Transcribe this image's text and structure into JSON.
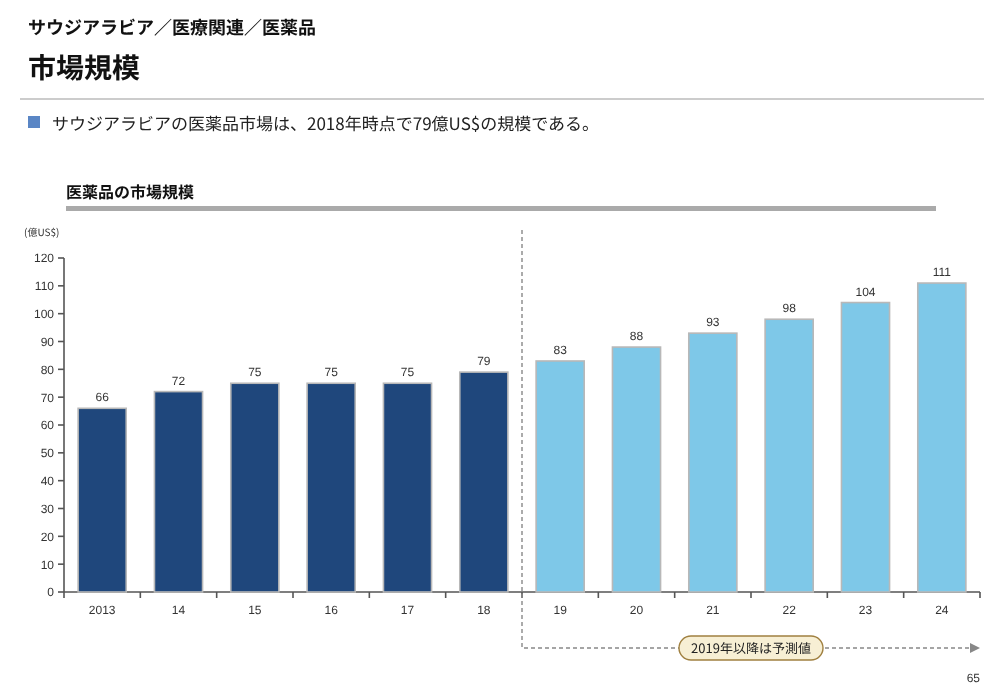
{
  "chart_data": {
    "type": "bar",
    "title": "市場規模",
    "subtitle": "医薬品の市場規模",
    "ylabel": "(億US$)",
    "annotations": [
      "サウジアラビア／医療関連／医薬品",
      "サウジアラビアの医薬品市場は、2018年時点で79億US$の規模である。",
      "65"
    ],
    "categories": [
      "2013",
      "14",
      "15",
      "16",
      "17",
      "18",
      "19",
      "20",
      "21",
      "22",
      "23",
      "24"
    ],
    "values": [
      66,
      72,
      75,
      75,
      75,
      79,
      83,
      88,
      93,
      98,
      104,
      111
    ],
    "colors": [
      "#1f477c",
      "#1f477c",
      "#1f477c",
      "#1f477c",
      "#1f477c",
      "#1f477c",
      "#7ec8e8",
      "#7ec8e8",
      "#7ec8e8",
      "#7ec8e8",
      "#7ec8e8",
      "#7ec8e8"
    ],
    "ylim": [
      0,
      120
    ],
    "yticks": [
      0,
      10,
      20,
      30,
      40,
      50,
      60,
      70,
      80,
      90,
      100,
      110,
      120
    ],
    "data_labels": true,
    "ref_lines": [
      {
        "axis": "x",
        "value": "19",
        "label": "2019年以降は予測値",
        "line_style": "dashed",
        "color": "#888888"
      }
    ]
  }
}
